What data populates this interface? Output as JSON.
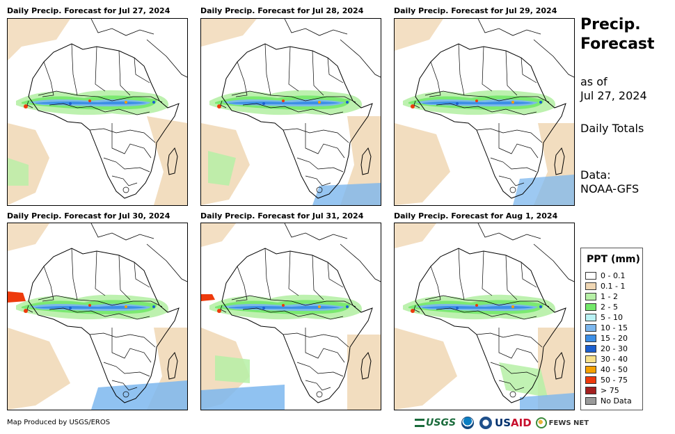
{
  "panels": [
    {
      "title": "Daily Precip. Forecast for Jul 27, 2024"
    },
    {
      "title": "Daily Precip. Forecast for Jul 28, 2024"
    },
    {
      "title": "Daily Precip. Forecast for Jul 29, 2024"
    },
    {
      "title": "Daily Precip. Forecast for Jul 30, 2024"
    },
    {
      "title": "Daily Precip. Forecast for Jul 31, 2024"
    },
    {
      "title": "Daily Precip. Forecast for Aug 1, 2024"
    }
  ],
  "side": {
    "title_line1": "Precip.",
    "title_line2": "Forecast",
    "asof_line1": "as of",
    "asof_line2": "Jul 27, 2024",
    "totals": "Daily Totals",
    "data_line1": "Data:",
    "data_line2": "NOAA-GFS"
  },
  "legend": {
    "title": "PPT (mm)",
    "items": [
      {
        "label": "0 - 0.1",
        "color": "#ffffff"
      },
      {
        "label": "0.1 - 1",
        "color": "#f0d7b4"
      },
      {
        "label": "1 - 2",
        "color": "#b6f0a6"
      },
      {
        "label": "2 - 5",
        "color": "#73e86a"
      },
      {
        "label": "5 - 10",
        "color": "#b9f2f4"
      },
      {
        "label": "10 - 15",
        "color": "#7cb7ee"
      },
      {
        "label": "15 - 20",
        "color": "#3d8fe6"
      },
      {
        "label": "20 - 30",
        "color": "#1b5fcf"
      },
      {
        "label": "30 - 40",
        "color": "#f7e08a"
      },
      {
        "label": "40 - 50",
        "color": "#f5a000"
      },
      {
        "label": "50 - 75",
        "color": "#ee3a0c"
      },
      {
        "label": "> 75",
        "color": "#a31f1f"
      },
      {
        "label": "No Data",
        "color": "#9a9a9a"
      }
    ]
  },
  "footer": {
    "credit": "Map Produced by USGS/EROS",
    "logo_usgs": "USGS",
    "logo_usaid_us": "US",
    "logo_usaid_aid": "AID",
    "logo_fews": "FEWS NET"
  }
}
